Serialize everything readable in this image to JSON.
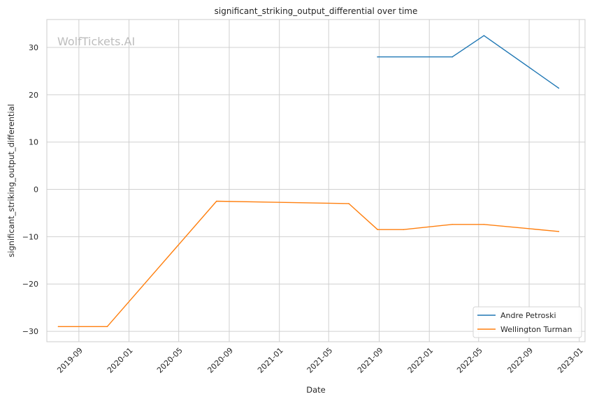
{
  "chart_data": {
    "type": "line",
    "title": "significant_striking_output_differential over time",
    "xlabel": "Date",
    "ylabel": "significant_striking_output_differential",
    "watermark": "WolfTickets.AI",
    "xlim": [
      "2019-06-15",
      "2023-01-15"
    ],
    "ylim": [
      -32.2,
      35.9
    ],
    "x_ticks": [
      "2019-09",
      "2020-01",
      "2020-05",
      "2020-09",
      "2021-01",
      "2021-05",
      "2021-09",
      "2022-01",
      "2022-05",
      "2022-09",
      "2023-01"
    ],
    "y_ticks": [
      30,
      20,
      10,
      0,
      -10,
      -20,
      -30
    ],
    "y_tick_labels": [
      "30",
      "20",
      "10",
      "0",
      "−10",
      "−20",
      "−30"
    ],
    "grid": true,
    "legend_position": "lower-right",
    "series": [
      {
        "name": "Andre Petroski",
        "color": "#1f77b4",
        "points": [
          {
            "x": "2021-08-28",
            "y": 28.0
          },
          {
            "x": "2022-02-26",
            "y": 28.0
          },
          {
            "x": "2022-05-14",
            "y": 32.5
          },
          {
            "x": "2022-11-12",
            "y": 21.4
          }
        ]
      },
      {
        "name": "Wellington Turman",
        "color": "#ff7f0e",
        "points": [
          {
            "x": "2019-07-13",
            "y": -29.0
          },
          {
            "x": "2019-11-09",
            "y": -29.0
          },
          {
            "x": "2020-08-01",
            "y": -2.5
          },
          {
            "x": "2021-06-19",
            "y": -3.0
          },
          {
            "x": "2021-08-28",
            "y": -8.5
          },
          {
            "x": "2021-10-30",
            "y": -8.5
          },
          {
            "x": "2022-02-26",
            "y": -7.4
          },
          {
            "x": "2022-05-14",
            "y": -7.4
          },
          {
            "x": "2022-11-12",
            "y": -8.9
          }
        ]
      }
    ]
  }
}
